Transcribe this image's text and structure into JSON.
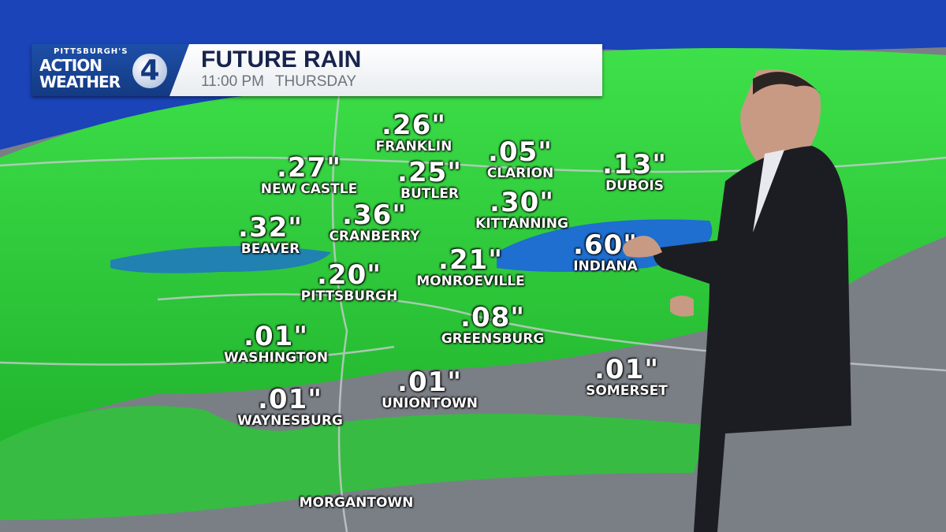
{
  "header": {
    "brand_small": "PITTSBURGH'S",
    "brand_line1": "ACTION",
    "brand_line2": "WEATHER",
    "brand_number": "4",
    "title": "FUTURE RAIN",
    "time": "11:00 PM",
    "day": "THURSDAY"
  },
  "colors": {
    "rain_light": "#2fd13a",
    "rain_moderate": "#1e6fd0",
    "no_rain": "#7a7f86",
    "lake": "#1a44b8"
  },
  "locations": [
    {
      "name": "FRANKLIN",
      "value": ".26\""
    },
    {
      "name": "CLARION",
      "value": ".05\""
    },
    {
      "name": "DUBOIS",
      "value": ".13\""
    },
    {
      "name": "NEW CASTLE",
      "value": ".27\""
    },
    {
      "name": "BUTLER",
      "value": ".25\""
    },
    {
      "name": "CRANBERRY",
      "value": ".36\""
    },
    {
      "name": "KITTANNING",
      "value": ".30\""
    },
    {
      "name": "BEAVER",
      "value": ".32\""
    },
    {
      "name": "INDIANA",
      "value": ".60\""
    },
    {
      "name": "MONROEVILLE",
      "value": ".21\""
    },
    {
      "name": "PITTSBURGH",
      "value": ".20\""
    },
    {
      "name": "GREENSBURG",
      "value": ".08\""
    },
    {
      "name": "WASHINGTON",
      "value": ".01\""
    },
    {
      "name": "SOMERSET",
      "value": ".01\""
    },
    {
      "name": "UNIONTOWN",
      "value": ".01\""
    },
    {
      "name": "WAYNESBURG",
      "value": ".01\""
    },
    {
      "name": "MORGANTOWN",
      "value": ""
    }
  ]
}
